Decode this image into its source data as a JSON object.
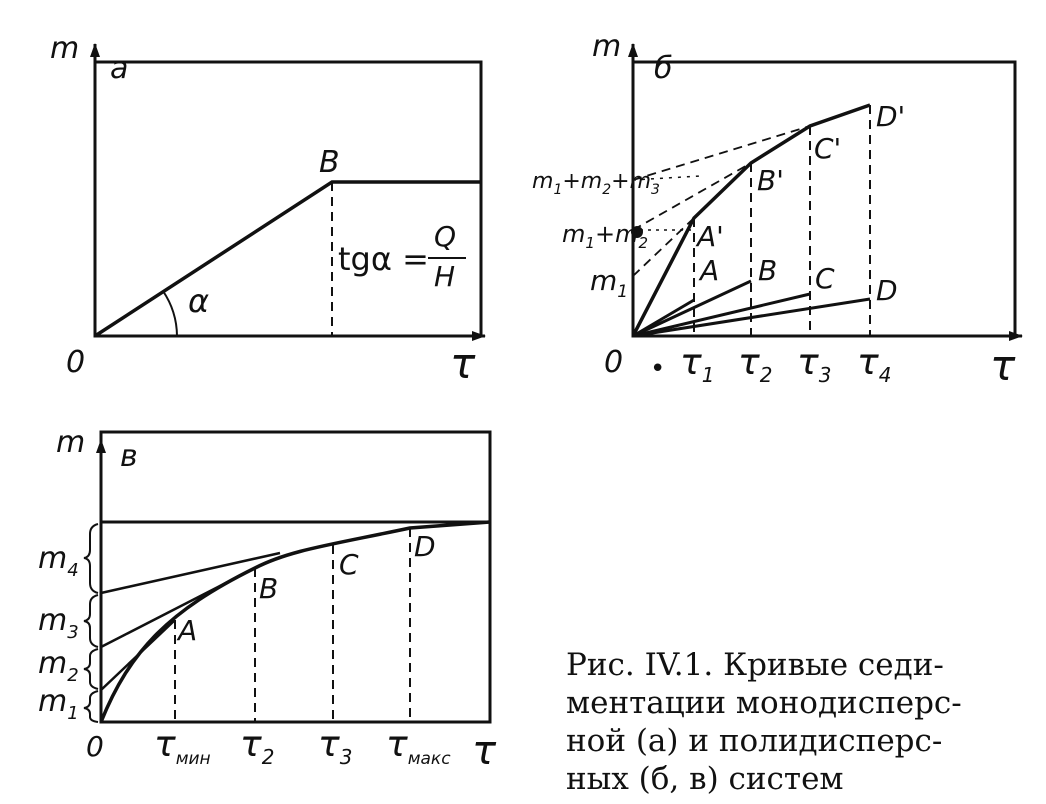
{
  "panel_a": {
    "y_axis": "m",
    "x_axis": "τ",
    "panel_label": "а",
    "origin": "0",
    "point_b": "B",
    "angle": "α",
    "formula_left": "tgα =",
    "formula_num": "Q",
    "formula_den": "H"
  },
  "panel_b": {
    "y_axis": "m",
    "x_axis": "τ",
    "panel_label": "б",
    "origin": "0",
    "dot_mark": "•",
    "points": [
      "A",
      "B",
      "C",
      "D"
    ],
    "primed_points": [
      "A'",
      "B'",
      "C'",
      "D'"
    ],
    "x_ticks": [
      {
        "main": "τ",
        "sub": "1"
      },
      {
        "main": "τ",
        "sub": "2"
      },
      {
        "main": "τ",
        "sub": "3"
      },
      {
        "main": "τ",
        "sub": "4"
      }
    ],
    "m_labels": [
      {
        "main": "m",
        "sub": "1"
      },
      {
        "main": "m",
        "sub": "1",
        "mid": "+m",
        "sub2": "2"
      },
      {
        "main": "m",
        "sub": "1",
        "mid": "+m",
        "sub2": "2",
        "mid2": "+m",
        "sub3": "3"
      }
    ]
  },
  "panel_v": {
    "y_axis": "m",
    "x_axis": "τ",
    "panel_label": "в",
    "origin": "0",
    "points": [
      "A",
      "B",
      "C",
      "D"
    ],
    "m_labels": [
      {
        "main": "m",
        "sub": "4"
      },
      {
        "main": "m",
        "sub": "3"
      },
      {
        "main": "m",
        "sub": "2"
      },
      {
        "main": "m",
        "sub": "1"
      }
    ],
    "x_ticks": [
      {
        "main": "τ",
        "sub": "мин"
      },
      {
        "main": "τ",
        "sub": "2"
      },
      {
        "main": "τ",
        "sub": "3"
      },
      {
        "main": "τ",
        "sub": "макс"
      }
    ]
  },
  "caption": {
    "line1": "Рис. IV.1. Кривые седи-",
    "line2": "ментации монодисперс-",
    "line3": "ной (а) и полидисперс-",
    "line4": "ных (б, в) систем"
  }
}
